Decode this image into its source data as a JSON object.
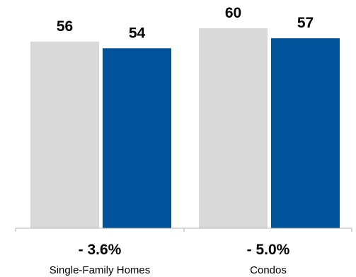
{
  "chart_data": {
    "type": "bar",
    "categories": [
      "Single-Family Homes",
      "Condos"
    ],
    "series": [
      {
        "values": [
          56,
          60
        ],
        "color": "#d9d9d9"
      },
      {
        "values": [
          54,
          57
        ],
        "color": "#00539b"
      }
    ],
    "changes": [
      "- 3.6%",
      "- 5.0%"
    ],
    "ylim": [
      0,
      60
    ],
    "grid": false,
    "legend": "none"
  }
}
